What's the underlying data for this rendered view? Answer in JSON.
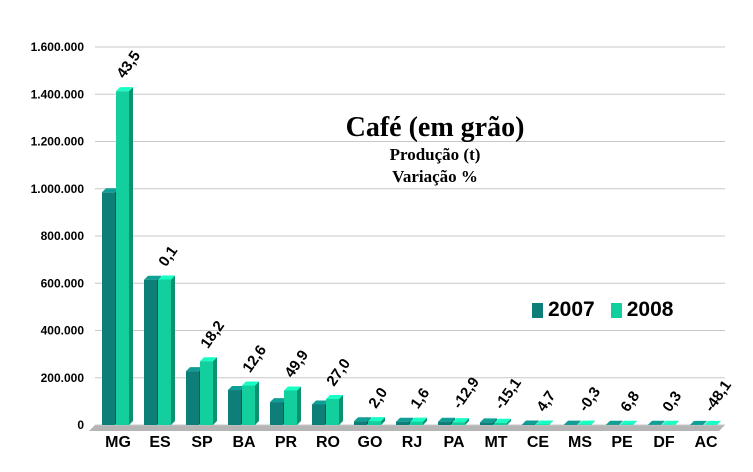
{
  "chart_data": {
    "type": "bar",
    "title": "Café (em grão)",
    "subtitle_lines": [
      "Produção (t)",
      "Variação %"
    ],
    "categories": [
      "MG",
      "ES",
      "SP",
      "BA",
      "PR",
      "RO",
      "GO",
      "RJ",
      "PA",
      "MT",
      "CE",
      "MS",
      "PE",
      "DF",
      "AC"
    ],
    "series": [
      {
        "name": "2007",
        "color": "#0d7f78",
        "values": [
          985000,
          615000,
          228000,
          148000,
          97000,
          87000,
          16000,
          14000,
          14000,
          11000,
          2000,
          1500,
          1200,
          900,
          600
        ]
      },
      {
        "name": "2008",
        "color": "#12cf9d",
        "values": [
          1413000,
          616000,
          270000,
          167000,
          146000,
          110000,
          16500,
          14500,
          12000,
          9500,
          2100,
          1500,
          1300,
          900,
          300
        ]
      }
    ],
    "variation_labels": [
      "43,5",
      "0,1",
      "18,2",
      "12,6",
      "49,9",
      "27,0",
      "2,0",
      "1,6",
      "-12,9",
      "-15,1",
      "4,7",
      "-0,3",
      "6,8",
      "0,3",
      "-48,1"
    ],
    "ylim": [
      0,
      1600000
    ],
    "yticks": [
      0,
      200000,
      400000,
      600000,
      800000,
      1000000,
      1200000,
      1400000,
      1600000
    ],
    "ytick_labels": [
      "0",
      "200.000",
      "400.000",
      "600.000",
      "800.000",
      "1.000.000",
      "1.200.000",
      "1.400.000",
      "1.600.000"
    ],
    "grid": true,
    "legend_position": "right-middle"
  },
  "legend": {
    "items": [
      "2007",
      "2008"
    ]
  }
}
